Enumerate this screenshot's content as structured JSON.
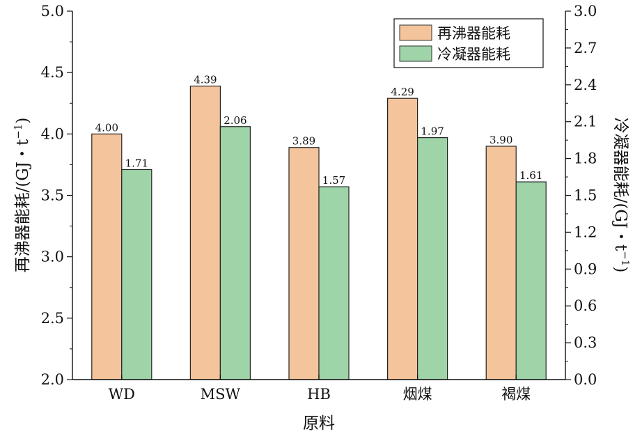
{
  "chart_data": {
    "type": "bar",
    "title": "",
    "xlabel": "原料",
    "ylabel_left": "再沸器能耗/(GJ・t",
    "ylabel_left_sup": "−1",
    "ylabel_left_suffix": ")",
    "ylabel_right": "冷凝器能耗/(GJ・t",
    "ylabel_right_sup": "−1",
    "ylabel_right_suffix": ")",
    "categories": [
      "WD",
      "MSW",
      "HB",
      "烟煤",
      "褐煤"
    ],
    "series": [
      {
        "name": "再沸器能耗",
        "axis": "left",
        "color": "#f4c49c",
        "values": [
          4.0,
          4.39,
          3.89,
          4.29,
          3.9
        ],
        "labels": [
          "4.00",
          "4.39",
          "3.89",
          "4.29",
          "3.90"
        ]
      },
      {
        "name": "冷凝器能耗",
        "axis": "right",
        "color": "#9ed4a8",
        "values": [
          1.71,
          2.06,
          1.57,
          1.97,
          1.61
        ],
        "labels": [
          "1.71",
          "2.06",
          "1.57",
          "1.97",
          "1.61"
        ]
      }
    ],
    "ylim_left": [
      2.0,
      5.0
    ],
    "yticks_left": [
      "2.0",
      "2.5",
      "3.0",
      "3.5",
      "4.0",
      "4.5",
      "5.0"
    ],
    "ylim_right": [
      0.0,
      3.0
    ],
    "yticks_right": [
      "0.0",
      "0.3",
      "0.6",
      "0.9",
      "1.2",
      "1.5",
      "1.8",
      "2.1",
      "2.4",
      "2.7",
      "3.0"
    ],
    "grid": false,
    "legend_position": "top-right"
  }
}
